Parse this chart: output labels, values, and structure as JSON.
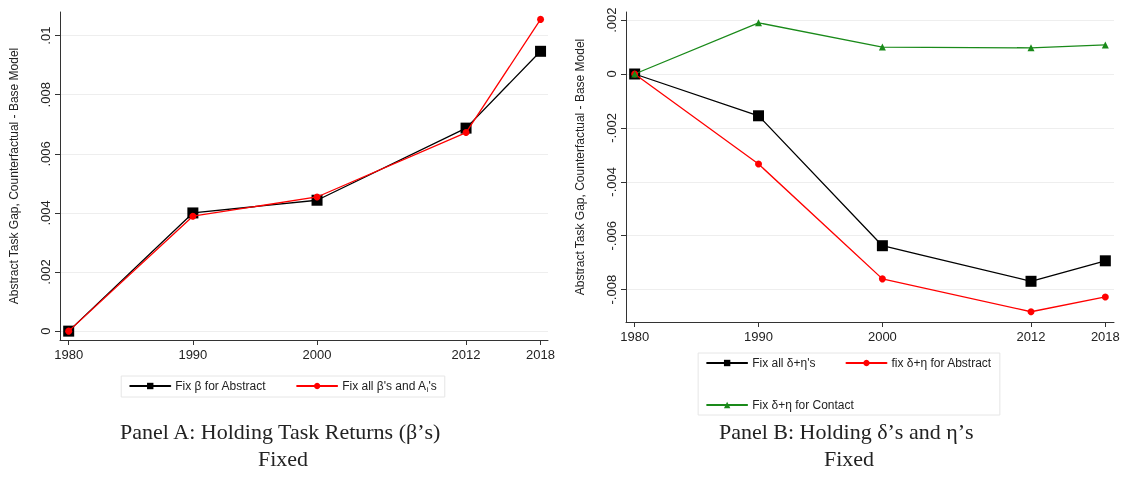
{
  "chart_data": [
    {
      "type": "line",
      "title": "Panel A: Holding Task Returns (β’s) Fixed",
      "ylabel": "Abstract Task Gap, Counterfactual - Base Model",
      "x": [
        1980,
        1990,
        2000,
        2012,
        2018
      ],
      "xlim": [
        1979.3,
        2018.6
      ],
      "xticks": [
        1980,
        1990,
        2000,
        2012,
        2018
      ],
      "ylim": [
        -0.0003,
        0.0108
      ],
      "yticks": [
        0,
        {
          "value": 0.002,
          "label": ".002"
        },
        {
          "value": 0.004,
          "label": ".004"
        },
        {
          "value": 0.006,
          "label": ".006"
        },
        {
          "value": 0.008,
          "label": ".008"
        },
        {
          "value": 0.01,
          "label": ".01"
        }
      ],
      "grid": "y",
      "legend": "bottom",
      "series": [
        {
          "name": "Fix β for Abstract",
          "color": "#000000",
          "marker": "square",
          "values": [
            0,
            0.004,
            0.00443,
            0.00687,
            0.00947
          ]
        },
        {
          "name": "Fix all β's and A$_{i}$'s",
          "color": "#ff0000",
          "marker": "circle",
          "values": [
            0,
            0.00389,
            0.00454,
            0.00672,
            0.01055
          ]
        }
      ]
    },
    {
      "type": "line",
      "title": "Panel B: Holding δ’s and η’s Fixed",
      "ylabel": "Abstract Task Gap, Counterfactual - Base Model",
      "x": [
        1980,
        1990,
        2000,
        2012,
        2018
      ],
      "xlim": [
        1979.3,
        2018.7
      ],
      "xticks": [
        1980,
        1990,
        2000,
        2012,
        2018
      ],
      "ylim": [
        -0.0092,
        0.0023
      ],
      "yticks": [
        {
          "value": -0.008,
          "label": "-.008"
        },
        {
          "value": -0.006,
          "label": "-.006"
        },
        {
          "value": -0.004,
          "label": "-.004"
        },
        {
          "value": -0.002,
          "label": "-.002"
        },
        0,
        {
          "value": 0.002,
          "label": ".002"
        }
      ],
      "grid": "y",
      "legend": "bottom",
      "series": [
        {
          "name": "Fix all δ+η's",
          "color": "#000000",
          "marker": "square",
          "values": [
            0,
            -0.00155,
            -0.00637,
            -0.00769,
            -0.00693
          ]
        },
        {
          "name": "fix δ+η for Abstract",
          "color": "#ff0000",
          "marker": "circle",
          "values": [
            0,
            -0.00334,
            -0.0076,
            -0.00882,
            -0.00827
          ]
        },
        {
          "name": "Fix δ+η for Contact",
          "color": "#1a8a1a",
          "marker": "triangle",
          "values": [
            0,
            0.0019,
            0.001,
            0.00097,
            0.00108
          ]
        }
      ]
    }
  ]
}
